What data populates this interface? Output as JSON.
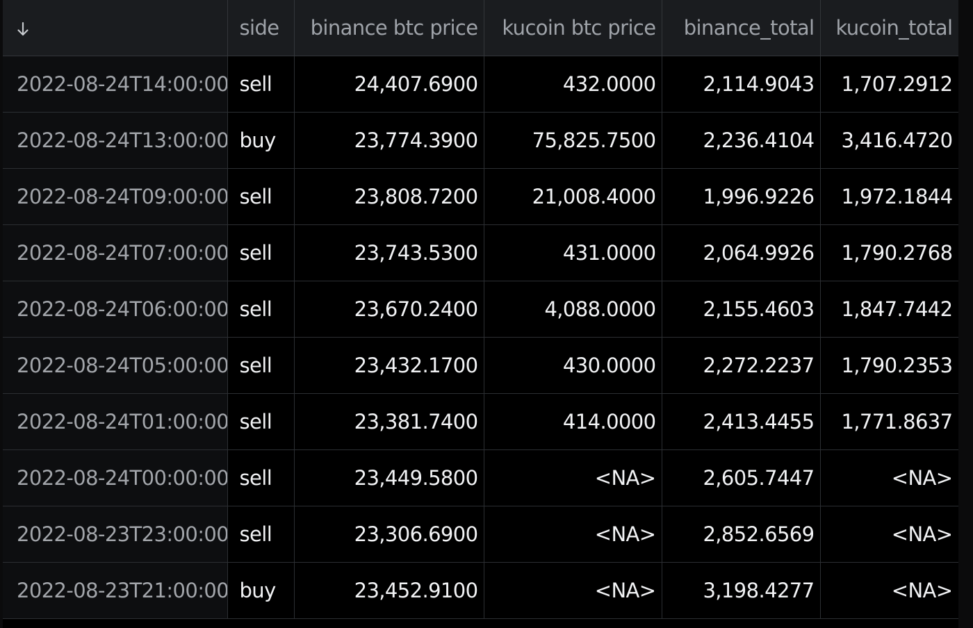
{
  "table": {
    "sort_icon": "arrow-down-icon",
    "columns": [
      "side",
      "binance btc price",
      "kucoin btc price",
      "binance_total",
      "kucoin_total"
    ],
    "rows": [
      {
        "index": "2022-08-24T14:00:00",
        "side": "sell",
        "binance_btc_price": "24,407.6900",
        "kucoin_btc_price": "432.0000",
        "binance_total": "2,114.9043",
        "kucoin_total": "1,707.2912"
      },
      {
        "index": "2022-08-24T13:00:00",
        "side": "buy",
        "binance_btc_price": "23,774.3900",
        "kucoin_btc_price": "75,825.7500",
        "binance_total": "2,236.4104",
        "kucoin_total": "3,416.4720"
      },
      {
        "index": "2022-08-24T09:00:00",
        "side": "sell",
        "binance_btc_price": "23,808.7200",
        "kucoin_btc_price": "21,008.4000",
        "binance_total": "1,996.9226",
        "kucoin_total": "1,972.1844"
      },
      {
        "index": "2022-08-24T07:00:00",
        "side": "sell",
        "binance_btc_price": "23,743.5300",
        "kucoin_btc_price": "431.0000",
        "binance_total": "2,064.9926",
        "kucoin_total": "1,790.2768"
      },
      {
        "index": "2022-08-24T06:00:00",
        "side": "sell",
        "binance_btc_price": "23,670.2400",
        "kucoin_btc_price": "4,088.0000",
        "binance_total": "2,155.4603",
        "kucoin_total": "1,847.7442"
      },
      {
        "index": "2022-08-24T05:00:00",
        "side": "sell",
        "binance_btc_price": "23,432.1700",
        "kucoin_btc_price": "430.0000",
        "binance_total": "2,272.2237",
        "kucoin_total": "1,790.2353"
      },
      {
        "index": "2022-08-24T01:00:00",
        "side": "sell",
        "binance_btc_price": "23,381.7400",
        "kucoin_btc_price": "414.0000",
        "binance_total": "2,413.4455",
        "kucoin_total": "1,771.8637"
      },
      {
        "index": "2022-08-24T00:00:00",
        "side": "sell",
        "binance_btc_price": "23,449.5800",
        "kucoin_btc_price": "<NA>",
        "binance_total": "2,605.7447",
        "kucoin_total": "<NA>"
      },
      {
        "index": "2022-08-23T23:00:00",
        "side": "sell",
        "binance_btc_price": "23,306.6900",
        "kucoin_btc_price": "<NA>",
        "binance_total": "2,852.6569",
        "kucoin_total": "<NA>"
      },
      {
        "index": "2022-08-23T21:00:00",
        "side": "buy",
        "binance_btc_price": "23,452.9100",
        "kucoin_btc_price": "<NA>",
        "binance_total": "3,198.4277",
        "kucoin_total": "<NA>"
      }
    ]
  }
}
